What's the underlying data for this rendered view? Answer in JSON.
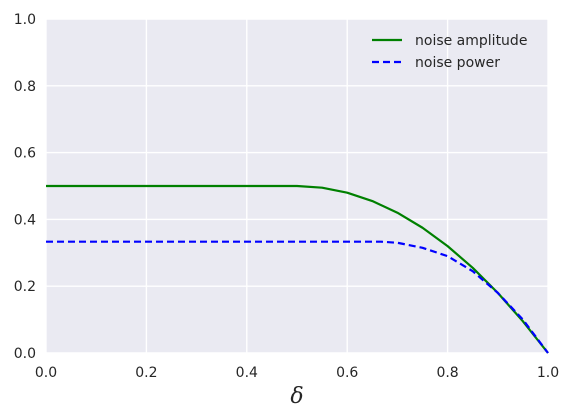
{
  "chart_data": {
    "type": "line",
    "xlabel": "δ",
    "ylabel": "",
    "title": "",
    "xlim": [
      0,
      1
    ],
    "ylim": [
      0,
      1
    ],
    "xticks": [
      "0.0",
      "0.2",
      "0.4",
      "0.6",
      "0.8",
      "1.0"
    ],
    "yticks": [
      "0.0",
      "0.2",
      "0.4",
      "0.6",
      "0.8",
      "1.0"
    ],
    "grid": true,
    "background_color": "#EAEAF2",
    "grid_color": "#FFFFFF",
    "legend": {
      "placement": "top-right"
    },
    "series": [
      {
        "name": "noise amplitude",
        "style": "solid",
        "color": "#008000",
        "x": [
          0.0,
          0.1,
          0.2,
          0.3,
          0.4,
          0.5,
          0.55,
          0.6,
          0.65,
          0.7,
          0.75,
          0.8,
          0.85,
          0.9,
          0.95,
          1.0
        ],
        "y": [
          0.5,
          0.5,
          0.5,
          0.5,
          0.5,
          0.5,
          0.495,
          0.48,
          0.455,
          0.42,
          0.375,
          0.32,
          0.255,
          0.18,
          0.095,
          0.0
        ]
      },
      {
        "name": "noise power",
        "style": "dashed",
        "color": "#0000FF",
        "x": [
          0.0,
          0.1,
          0.2,
          0.3,
          0.4,
          0.5,
          0.6,
          0.667,
          0.7,
          0.75,
          0.8,
          0.85,
          0.9,
          0.95,
          1.0
        ],
        "y": [
          0.3333,
          0.3333,
          0.3333,
          0.3333,
          0.3333,
          0.3333,
          0.3333,
          0.3333,
          0.33,
          0.315,
          0.29,
          0.245,
          0.18,
          0.1,
          0.0
        ]
      }
    ]
  }
}
